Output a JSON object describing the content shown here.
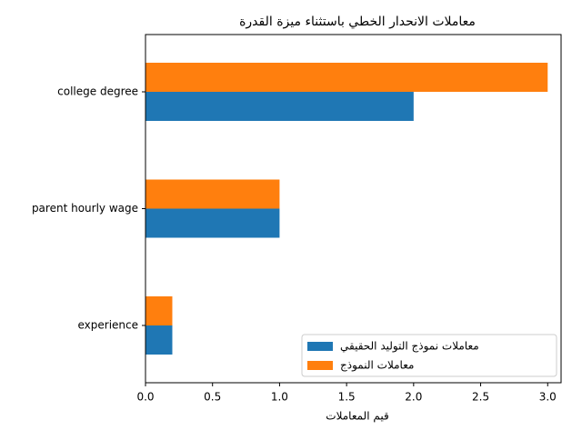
{
  "chart_data": {
    "type": "barh",
    "title": "معاملات الانحدار الخطي باستثناء ميزة القدرة",
    "x_label": "قيم المعاملات",
    "categories": [
      "experience",
      "parent hourly wage",
      "college degree"
    ],
    "series": [
      {
        "name": "معاملات نموذج التوليد الحقيقي",
        "color": "#1f77b4",
        "values": [
          0.2,
          1,
          2
        ]
      },
      {
        "name": "معاملات النموذج",
        "color": "#ff7f0e",
        "values": [
          0.2,
          1,
          3
        ]
      }
    ],
    "xlim": [
      0,
      3.1
    ],
    "xticks": [
      {
        "value": 0,
        "label": "0.0"
      },
      {
        "value": 0.5,
        "label": "0.5"
      },
      {
        "value": 1,
        "label": "1.0"
      },
      {
        "value": 1.5,
        "label": "1.5"
      },
      {
        "value": 2,
        "label": "2.0"
      },
      {
        "value": 2.5,
        "label": "2.5"
      },
      {
        "value": 3,
        "label": "3.0"
      }
    ],
    "legend": "lower right"
  }
}
